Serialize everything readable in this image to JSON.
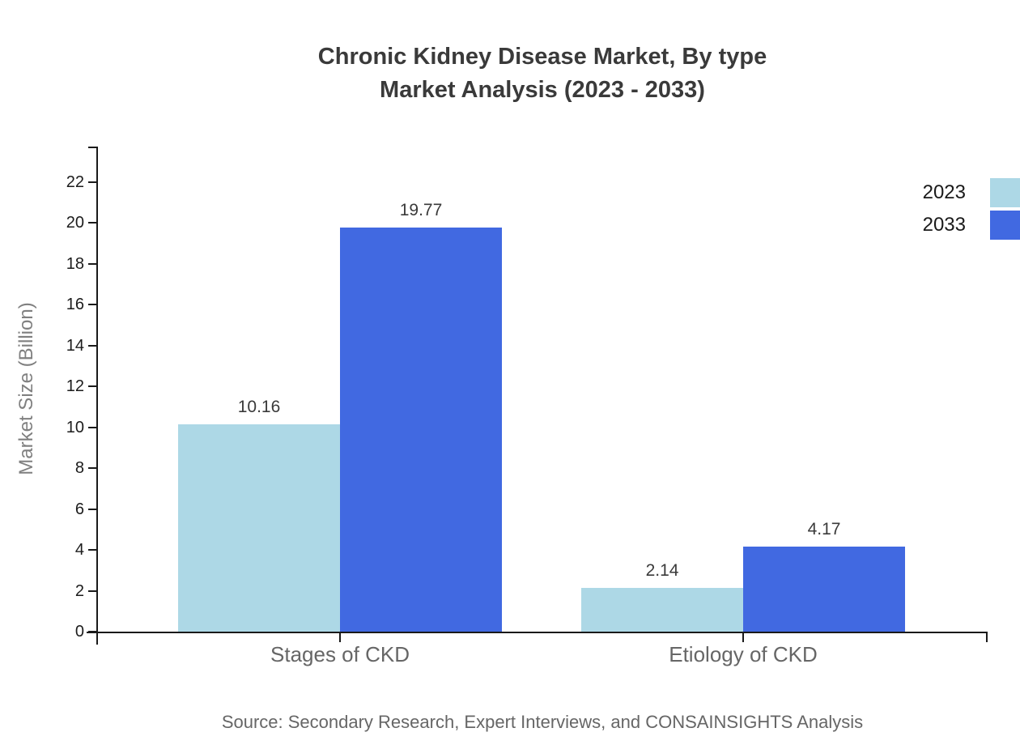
{
  "header": {
    "title_line1": "Chronic Kidney Disease Market, By type",
    "title_line2": "Market Analysis (2023 - 2033)"
  },
  "chart_data": {
    "type": "bar",
    "title": "Chronic Kidney Disease Market, By type Market Analysis (2023 - 2033)",
    "categories": [
      "Stages of CKD",
      "Etiology of CKD"
    ],
    "series": [
      {
        "name": "2023",
        "color": "#ADD8E6",
        "values": [
          10.16,
          2.14
        ]
      },
      {
        "name": "2033",
        "color": "#4169E1",
        "values": [
          19.77,
          4.17
        ]
      }
    ],
    "xlabel": "",
    "ylabel": "Market Size (Billion)",
    "ylim": [
      0,
      23.7
    ],
    "yticks": [
      0,
      2,
      4,
      6,
      8,
      10,
      12,
      14,
      16,
      18,
      20,
      22
    ],
    "grid": false,
    "legend_position": "top-right",
    "value_labels": true,
    "source": "Source: Secondary Research, Expert Interviews, and CONSAINSIGHTS Analysis",
    "colors": {
      "series_2023": "#ADD8E6",
      "series_2033": "#4169E1",
      "axis": "#1a1a1a",
      "title_text": "#3a3a3a",
      "category_text": "#666666",
      "axis_title_text": "#808080",
      "source_text": "#666666"
    }
  }
}
